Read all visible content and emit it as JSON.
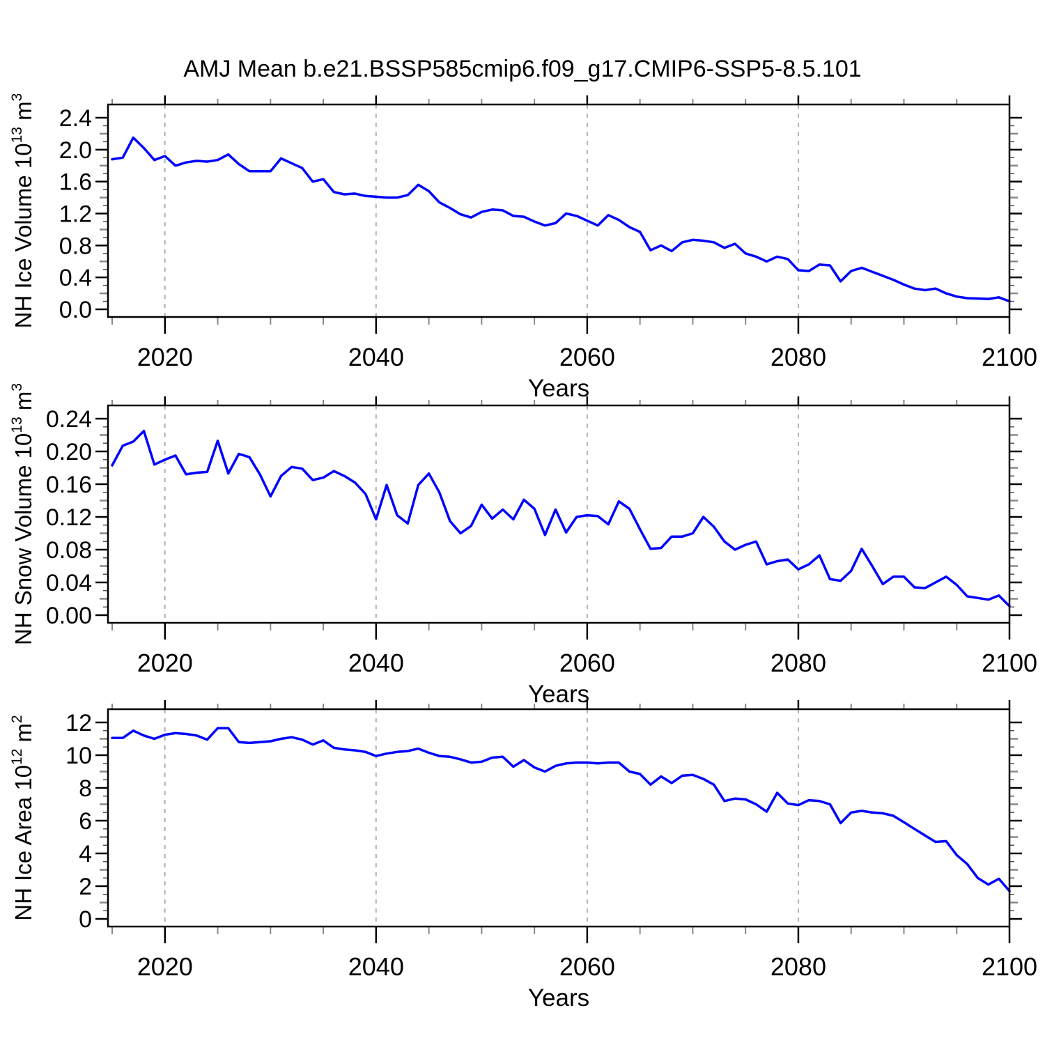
{
  "title": "AMJ Mean b.e21.BSSP585cmip6.f09_g17.CMIP6-SSP5-8.5.101",
  "style": {
    "line_color": "#0000ff",
    "grid_color": "#999999",
    "frame_color": "#000000",
    "major_tick_color": "#000000",
    "medium_tick_color": "#888888",
    "minor_tick_color": "#555555",
    "background": "#ffffff"
  },
  "x_axis": {
    "label": "Years",
    "major_ticks": [
      2020,
      2040,
      2060,
      2080,
      2100
    ],
    "tick_labels": [
      "2020",
      "2040",
      "2060",
      "2080",
      "2100"
    ],
    "minor_step": 5,
    "grid_years": [
      2020,
      2040,
      2060,
      2080
    ],
    "data_start": 2015,
    "data_end": 2100
  },
  "chart_data": [
    {
      "type": "line",
      "name": "nh-ice-volume",
      "title": "NH Ice Volume",
      "ylabel_plain": "NH Ice Volume 10^13 m^3",
      "ylabel": {
        "text": "NH Ice Volume 10",
        "exp": "13",
        "unit": " m",
        "unit_exp": "3"
      },
      "xlabel": "Years",
      "ylim": [
        0,
        2.4
      ],
      "ymajor_step": 0.4,
      "ymedium_step": 0.2,
      "yminor_step": 0.1,
      "ytick_decimals": 1,
      "x_start": 2015,
      "x_step": 1,
      "values": [
        1.88,
        1.9,
        2.15,
        2.02,
        1.87,
        1.92,
        1.8,
        1.84,
        1.86,
        1.85,
        1.87,
        1.94,
        1.82,
        1.73,
        1.73,
        1.73,
        1.89,
        1.83,
        1.77,
        1.6,
        1.63,
        1.47,
        1.44,
        1.45,
        1.42,
        1.41,
        1.4,
        1.4,
        1.43,
        1.56,
        1.48,
        1.34,
        1.27,
        1.19,
        1.15,
        1.22,
        1.25,
        1.24,
        1.17,
        1.16,
        1.1,
        1.05,
        1.08,
        1.2,
        1.17,
        1.11,
        1.05,
        1.18,
        1.12,
        1.03,
        0.97,
        0.74,
        0.8,
        0.73,
        0.84,
        0.87,
        0.86,
        0.84,
        0.77,
        0.82,
        0.7,
        0.66,
        0.6,
        0.66,
        0.63,
        0.49,
        0.48,
        0.56,
        0.55,
        0.35,
        0.48,
        0.52,
        0.47,
        0.42,
        0.37,
        0.31,
        0.26,
        0.24,
        0.26,
        0.2,
        0.16,
        0.14,
        0.135,
        0.13,
        0.15,
        0.1
      ]
    },
    {
      "type": "line",
      "name": "nh-snow-volume",
      "title": "NH Snow Volume",
      "ylabel_plain": "NH Snow Volume 10^13 m^3",
      "ylabel": {
        "text": "NH Snow Volume 10",
        "exp": "13",
        "unit": " m",
        "unit_exp": "3"
      },
      "xlabel": "Years",
      "ylim": [
        0,
        0.24
      ],
      "ymajor_step": 0.04,
      "ymedium_step": 0.02,
      "yminor_step": 0.01,
      "ytick_decimals": 2,
      "x_start": 2015,
      "x_step": 1,
      "values": [
        0.183,
        0.207,
        0.212,
        0.225,
        0.184,
        0.19,
        0.195,
        0.172,
        0.174,
        0.175,
        0.213,
        0.173,
        0.197,
        0.193,
        0.172,
        0.145,
        0.17,
        0.181,
        0.179,
        0.165,
        0.168,
        0.176,
        0.17,
        0.162,
        0.148,
        0.117,
        0.159,
        0.122,
        0.112,
        0.159,
        0.173,
        0.15,
        0.115,
        0.1,
        0.109,
        0.135,
        0.118,
        0.129,
        0.117,
        0.141,
        0.13,
        0.098,
        0.129,
        0.101,
        0.12,
        0.122,
        0.121,
        0.111,
        0.139,
        0.13,
        0.105,
        0.081,
        0.082,
        0.096,
        0.096,
        0.1,
        0.12,
        0.108,
        0.09,
        0.08,
        0.086,
        0.09,
        0.062,
        0.066,
        0.068,
        0.056,
        0.062,
        0.073,
        0.044,
        0.042,
        0.054,
        0.081,
        0.06,
        0.038,
        0.047,
        0.047,
        0.034,
        0.033,
        0.04,
        0.047,
        0.037,
        0.023,
        0.021,
        0.019,
        0.024,
        0.011
      ]
    },
    {
      "type": "line",
      "name": "nh-ice-area",
      "title": "NH Ice Area",
      "ylabel_plain": "NH Ice Area 10^12 m^2",
      "ylabel": {
        "text": "NH Ice Area 10",
        "exp": "12",
        "unit": " m",
        "unit_exp": "2"
      },
      "xlabel": "Years",
      "ylim": [
        0,
        12
      ],
      "ymajor_step": 2,
      "ymedium_step": 1,
      "yminor_step": 0.5,
      "ytick_decimals": 0,
      "x_start": 2015,
      "x_step": 1,
      "values": [
        11.05,
        11.05,
        11.5,
        11.2,
        11.0,
        11.25,
        11.35,
        11.3,
        11.2,
        10.95,
        11.65,
        11.65,
        10.8,
        10.75,
        10.8,
        10.85,
        11.0,
        11.1,
        10.95,
        10.65,
        10.9,
        10.45,
        10.35,
        10.3,
        10.2,
        9.95,
        10.1,
        10.2,
        10.25,
        10.4,
        10.15,
        9.95,
        9.9,
        9.75,
        9.55,
        9.6,
        9.85,
        9.9,
        9.3,
        9.7,
        9.25,
        9.0,
        9.35,
        9.5,
        9.55,
        9.55,
        9.5,
        9.55,
        9.55,
        9.0,
        8.85,
        8.2,
        8.7,
        8.3,
        8.75,
        8.8,
        8.55,
        8.2,
        7.2,
        7.35,
        7.3,
        7.0,
        6.55,
        7.7,
        7.05,
        6.95,
        7.25,
        7.2,
        7.0,
        5.85,
        6.5,
        6.6,
        6.5,
        6.45,
        6.3,
        5.9,
        5.5,
        5.1,
        4.7,
        4.75,
        3.9,
        3.35,
        2.5,
        2.1,
        2.45,
        1.7
      ]
    }
  ]
}
